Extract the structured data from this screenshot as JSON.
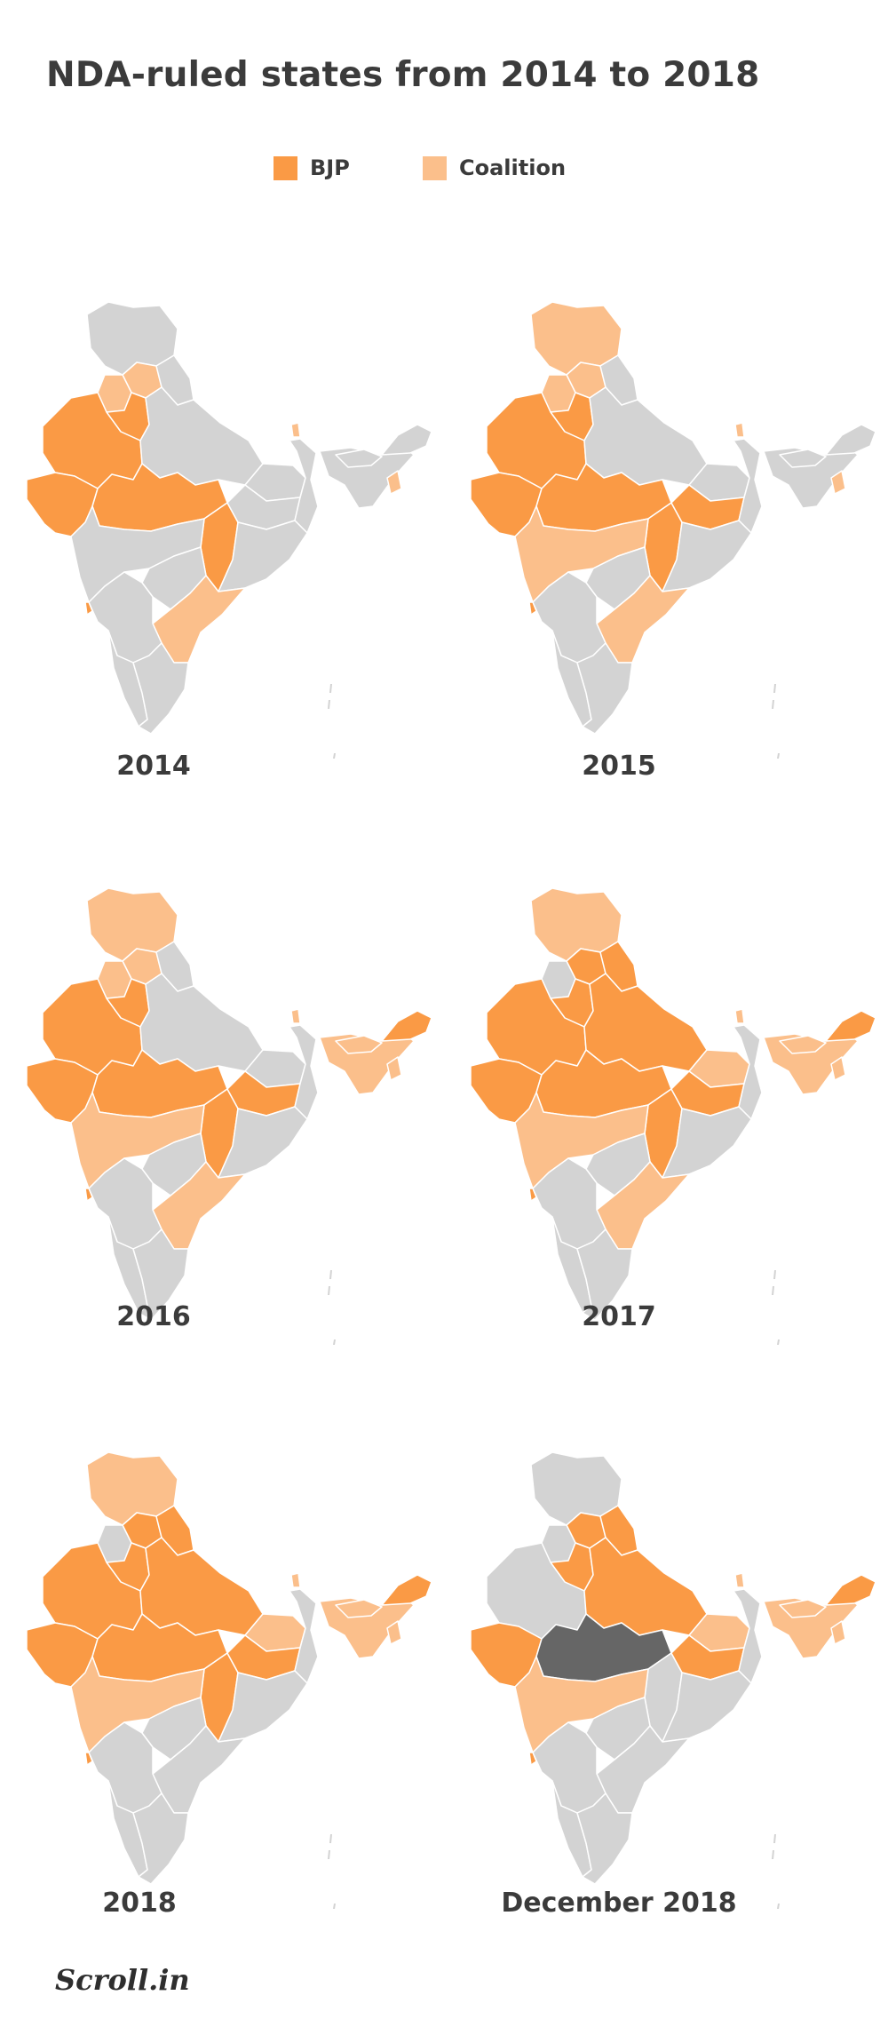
{
  "title": "NDA-ruled states from 2014 to 2018",
  "legend": {
    "bjp": {
      "label": "BJP",
      "color": "#fa9a45"
    },
    "coalition": {
      "label": "Coalition",
      "color": "#fbbf8b"
    }
  },
  "colors": {
    "none": "#d3d3d3",
    "lost": "#666666",
    "border": "#ffffff"
  },
  "maps": [
    {
      "year": "2014",
      "states": {
        "jk": "none",
        "hp": "coalition",
        "pb": "coalition",
        "uk": "none",
        "hr": "bjp",
        "rj": "bjp",
        "up": "none",
        "gj": "bjp",
        "mp": "bjp",
        "cg": "bjp",
        "mh": "none",
        "bh": "none",
        "jh": "none",
        "wb": "none",
        "od": "none",
        "tg": "none",
        "ap": "coalition",
        "ka": "none",
        "ga": "bjp",
        "kl": "none",
        "tn": "none",
        "sk": "coalition",
        "ne": "none",
        "as": "none",
        "ar": "none",
        "nl": "coalition"
      }
    },
    {
      "year": "2015",
      "states": {
        "jk": "coalition",
        "hp": "coalition",
        "pb": "coalition",
        "uk": "none",
        "hr": "bjp",
        "rj": "bjp",
        "up": "none",
        "gj": "bjp",
        "mp": "bjp",
        "cg": "bjp",
        "mh": "coalition",
        "bh": "none",
        "jh": "bjp",
        "wb": "none",
        "od": "none",
        "tg": "none",
        "ap": "coalition",
        "ka": "none",
        "ga": "bjp",
        "kl": "none",
        "tn": "none",
        "sk": "coalition",
        "ne": "none",
        "as": "none",
        "ar": "none",
        "nl": "coalition"
      }
    },
    {
      "year": "2016",
      "states": {
        "jk": "coalition",
        "hp": "coalition",
        "pb": "coalition",
        "uk": "none",
        "hr": "bjp",
        "rj": "bjp",
        "up": "none",
        "gj": "bjp",
        "mp": "bjp",
        "cg": "bjp",
        "mh": "coalition",
        "bh": "none",
        "jh": "bjp",
        "wb": "none",
        "od": "none",
        "tg": "none",
        "ap": "coalition",
        "ka": "none",
        "ga": "bjp",
        "kl": "none",
        "tn": "none",
        "sk": "coalition",
        "ne": "coalition",
        "as": "coalition",
        "ar": "bjp",
        "nl": "coalition"
      }
    },
    {
      "year": "2017",
      "states": {
        "jk": "coalition",
        "hp": "bjp",
        "pb": "none",
        "uk": "bjp",
        "hr": "bjp",
        "rj": "bjp",
        "up": "bjp",
        "gj": "bjp",
        "mp": "bjp",
        "cg": "bjp",
        "mh": "coalition",
        "bh": "coalition",
        "jh": "bjp",
        "wb": "none",
        "od": "none",
        "tg": "none",
        "ap": "coalition",
        "ka": "none",
        "ga": "bjp",
        "kl": "none",
        "tn": "none",
        "sk": "coalition",
        "ne": "coalition",
        "as": "coalition",
        "ar": "bjp",
        "nl": "coalition"
      }
    },
    {
      "year": "2018",
      "states": {
        "jk": "coalition",
        "hp": "bjp",
        "pb": "none",
        "uk": "bjp",
        "hr": "bjp",
        "rj": "bjp",
        "up": "bjp",
        "gj": "bjp",
        "mp": "bjp",
        "cg": "bjp",
        "mh": "coalition",
        "bh": "coalition",
        "jh": "bjp",
        "wb": "none",
        "od": "none",
        "tg": "none",
        "ap": "none",
        "ka": "none",
        "ga": "bjp",
        "kl": "none",
        "tn": "none",
        "sk": "coalition",
        "ne": "coalition",
        "as": "coalition",
        "ar": "bjp",
        "nl": "coalition"
      }
    },
    {
      "year": "December 2018",
      "states": {
        "jk": "none",
        "hp": "bjp",
        "pb": "none",
        "uk": "bjp",
        "hr": "bjp",
        "rj": "none",
        "up": "bjp",
        "gj": "bjp",
        "mp": "lost",
        "cg": "none",
        "mh": "coalition",
        "bh": "coalition",
        "jh": "bjp",
        "wb": "none",
        "od": "none",
        "tg": "none",
        "ap": "none",
        "ka": "none",
        "ga": "bjp",
        "kl": "none",
        "tn": "none",
        "sk": "coalition",
        "ne": "coalition",
        "as": "coalition",
        "ar": "bjp",
        "nl": "coalition"
      }
    }
  ],
  "logo": "Scroll.in"
}
